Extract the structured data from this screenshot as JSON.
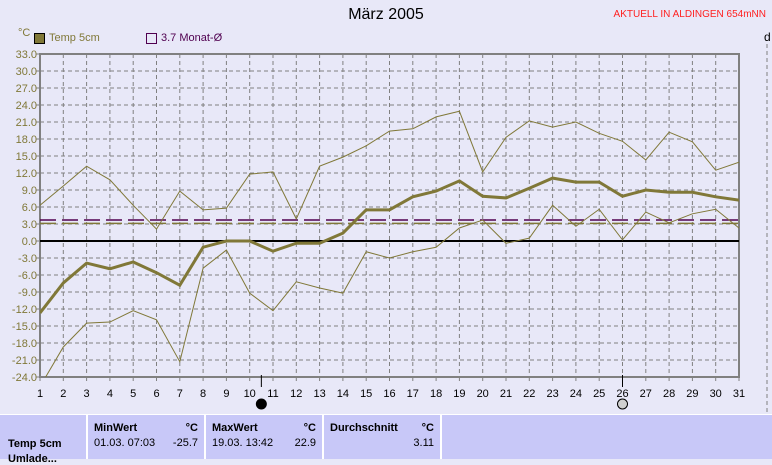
{
  "header": {
    "title": "März 2005",
    "station": "AKTUELL IN ALDINGEN 654mNN",
    "unit": "°C",
    "right_axis_label": "d"
  },
  "legend": [
    {
      "label": "Temp 5cm",
      "color": "#807838"
    },
    {
      "label": "3.7 Monat-Ø",
      "color": "#500050"
    }
  ],
  "chart_data": {
    "type": "line",
    "title": "März 2005",
    "ylabel": "°C",
    "ylim": [
      -24,
      33
    ],
    "yticks": [
      "33.0",
      "30.0",
      "27.0",
      "24.0",
      "21.0",
      "18.0",
      "15.0",
      "12.0",
      "9.0",
      "6.0",
      "3.0",
      "0.0",
      "-3.0",
      "-6.0",
      "-9.0",
      "-12.0",
      "-15.0",
      "-18.0",
      "-21.0",
      "-24.0"
    ],
    "x": [
      1,
      2,
      3,
      4,
      5,
      6,
      7,
      8,
      9,
      10,
      11,
      12,
      13,
      14,
      15,
      16,
      17,
      18,
      19,
      20,
      21,
      22,
      23,
      24,
      25,
      26,
      27,
      28,
      29,
      30,
      31
    ],
    "grid": true,
    "series": [
      {
        "name": "Temp 5cm",
        "role": "mean",
        "color": "#807838",
        "values": [
          -12.7,
          -7.4,
          -3.9,
          -4.9,
          -3.7,
          -5.6,
          -7.8,
          -1.1,
          0,
          0,
          -1.8,
          -0.4,
          -0.4,
          1.4,
          5.5,
          5.5,
          7.8,
          8.8,
          10.6,
          7.9,
          7.6,
          9.3,
          11.1,
          10.4,
          10.4,
          7.9,
          9.0,
          8.6,
          8.6,
          7.8,
          7.2
        ]
      },
      {
        "role": "max",
        "color": "#807838",
        "values": [
          6.3,
          9.7,
          13.2,
          10.8,
          6.3,
          2.1,
          8.8,
          5.5,
          5.8,
          11.8,
          12.2,
          3.9,
          13.2,
          14.8,
          16.8,
          19.4,
          19.8,
          21.9,
          22.9,
          12.2,
          18.3,
          21.2,
          20.1,
          21.0,
          19.0,
          17.6,
          14.3,
          19.2,
          17.5,
          12.5,
          13.9
        ]
      },
      {
        "role": "min",
        "color": "#807838",
        "values": [
          -25.7,
          -18.7,
          -14.5,
          -14.3,
          -12.3,
          -13.9,
          -21.3,
          -4.8,
          -1.6,
          -9.2,
          -12.3,
          -7.2,
          -8.3,
          -9.2,
          -1.9,
          -3.0,
          -1.9,
          -1.1,
          2.3,
          3.7,
          -0.4,
          0.5,
          6.3,
          2.6,
          5.6,
          0.2,
          5.1,
          3.2,
          4.8,
          5.6,
          2.3
        ]
      }
    ],
    "reference_lines": [
      {
        "label": "3.7 Monat-Ø",
        "value": 3.7,
        "color": "#500050"
      },
      {
        "value": 3.11,
        "color": "#807838"
      }
    ],
    "moon_phases": [
      {
        "day": 10.5,
        "phase": "new-moon"
      },
      {
        "day": 26,
        "phase": "full-moon"
      }
    ]
  },
  "table": {
    "row_label": "Temp 5cm",
    "row_label_2": "Umlade...",
    "min": {
      "header": "MinWert",
      "unit": "°C",
      "date": "01.03.  07:03",
      "value": "-25.7"
    },
    "max": {
      "header": "MaxWert",
      "unit": "°C",
      "date": "19.03.  13:42",
      "value": "22.9"
    },
    "avg": {
      "header": "Durchschnitt",
      "unit": "°C",
      "value": "3.11"
    }
  }
}
